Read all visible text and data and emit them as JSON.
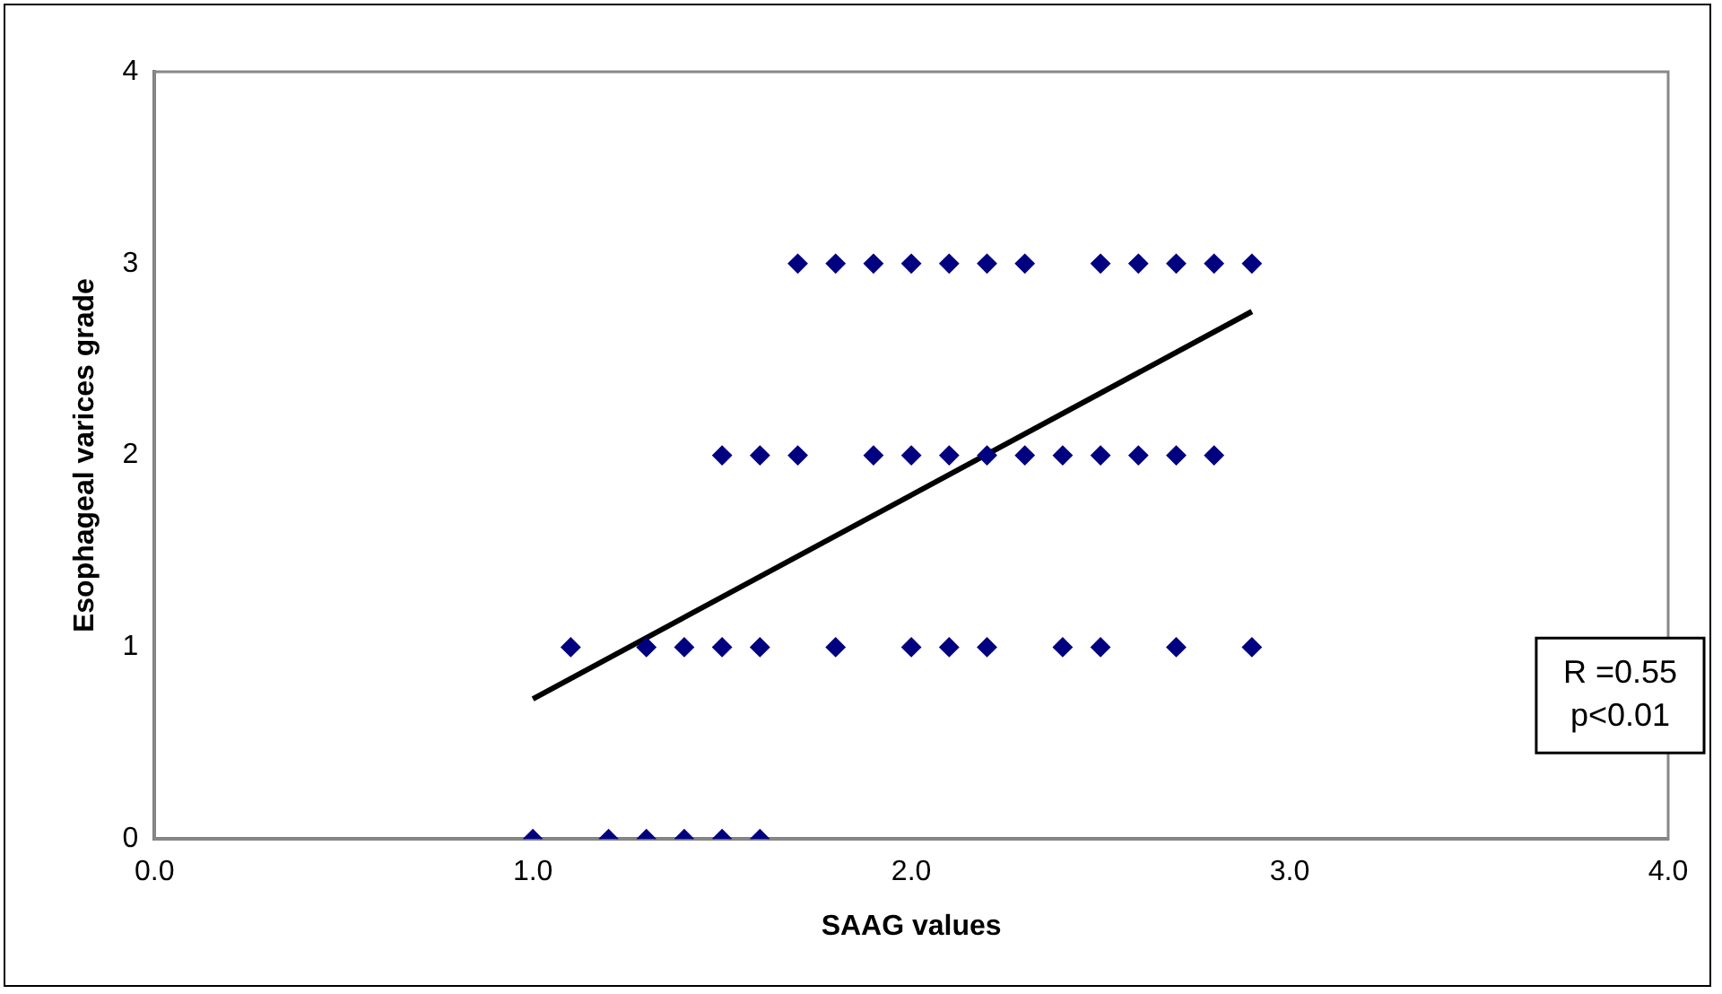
{
  "chart_data": {
    "type": "scatter",
    "xlabel": "SAAG values",
    "ylabel": "Esophageal varices grade",
    "xlim": [
      0,
      4
    ],
    "xticks": [
      {
        "value": 0,
        "label": "0.0"
      },
      {
        "value": 1,
        "label": "1.0"
      },
      {
        "value": 2,
        "label": "2.0"
      },
      {
        "value": 3,
        "label": "3.0"
      },
      {
        "value": 4,
        "label": "4.0"
      }
    ],
    "ylim": [
      0,
      4
    ],
    "yticks": [
      0,
      1,
      2,
      3,
      4
    ],
    "grid": false,
    "legend": false,
    "marker": "diamond",
    "series": [
      {
        "color": "#000080",
        "x": [
          1.7,
          1.8,
          1.9,
          2.0,
          2.1,
          2.2,
          2.3,
          2.5,
          2.6,
          2.7,
          2.8,
          2.9,
          1.5,
          1.6,
          1.7,
          1.9,
          2.0,
          2.1,
          2.2,
          2.3,
          2.4,
          2.5,
          2.6,
          2.7,
          2.8,
          1.1,
          1.3,
          1.4,
          1.5,
          1.6,
          1.8,
          2.0,
          2.1,
          2.2,
          2.4,
          2.5,
          2.7,
          2.9,
          1.0,
          1.2,
          1.3,
          1.4,
          1.5,
          1.6
        ],
        "values": [
          3,
          3,
          3,
          3,
          3,
          3,
          3,
          3,
          3,
          3,
          3,
          3,
          2,
          2,
          2,
          2,
          2,
          2,
          2,
          2,
          2,
          2,
          2,
          2,
          2,
          1,
          1,
          1,
          1,
          1,
          1,
          1,
          1,
          1,
          1,
          1,
          1,
          1,
          0,
          0,
          0,
          0,
          0,
          0
        ]
      },
      {
        "type": "line",
        "color": "#000000",
        "line_style": "solid",
        "marker": "none",
        "x": [
          1.0,
          2.9
        ],
        "values": [
          0.73,
          2.75
        ]
      }
    ],
    "annotations": [
      "R =0.55\np<0.01"
    ]
  }
}
